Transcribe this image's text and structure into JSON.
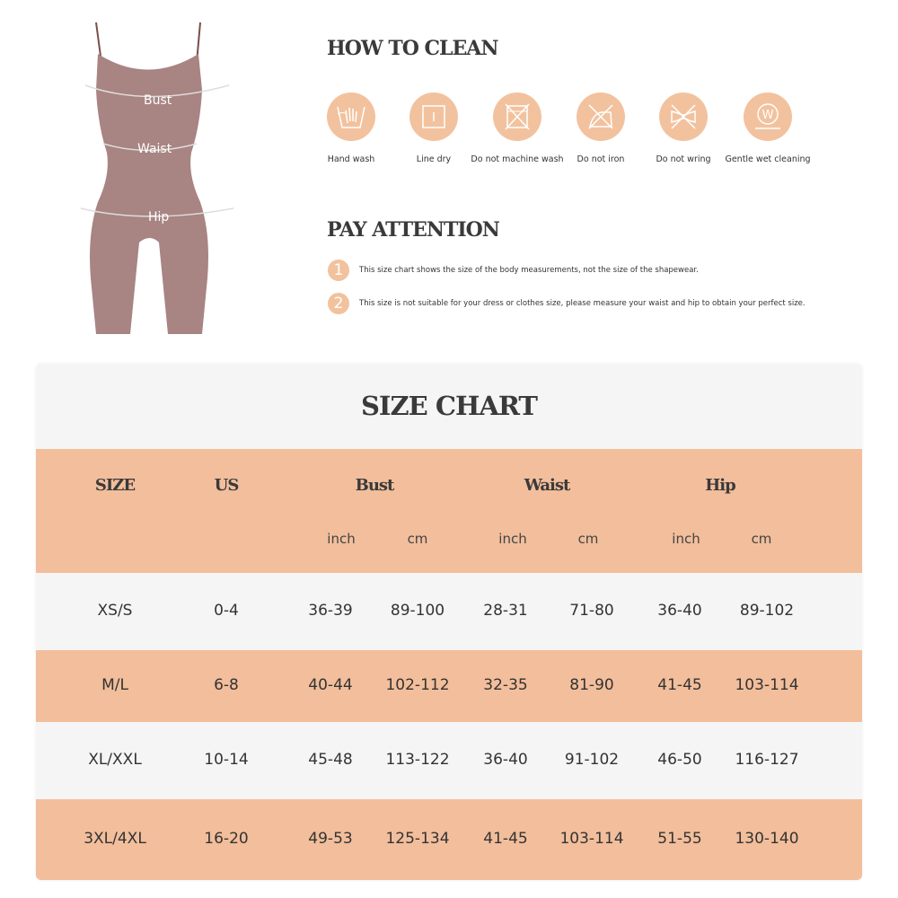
{
  "figure": {
    "labels": {
      "bust": "Bust",
      "waist": "Waist",
      "hip": "Hip"
    },
    "body_color": "#a88482"
  },
  "how_to_clean": {
    "title": "HOW TO CLEAN",
    "items": [
      {
        "label": "Hand wash",
        "icon": "hand-wash-icon"
      },
      {
        "label": "Line dry",
        "icon": "line-dry-icon"
      },
      {
        "label": "Do not machine wash",
        "icon": "no-machine-wash-icon"
      },
      {
        "label": "Do not iron",
        "icon": "no-iron-icon"
      },
      {
        "label": "Do not wring",
        "icon": "no-wring-icon"
      },
      {
        "label": "Gentle wet cleaning",
        "icon": "wet-cleaning-icon"
      }
    ]
  },
  "pay_attention": {
    "title": "PAY ATTENTION",
    "items": [
      {
        "num": "1",
        "text": "This size chart shows the size of the body measurements, not the size of the shapewear."
      },
      {
        "num": "2",
        "text": "This size is not suitable for your dress or clothes size, please measure your waist and hip to obtain your perfect size."
      }
    ]
  },
  "size_chart": {
    "title": "SIZE CHART",
    "headers": [
      "SIZE",
      "US",
      "Bust",
      "Waist",
      "Hip"
    ],
    "units": [
      "inch",
      "cm",
      "inch",
      "cm",
      "inch",
      "cm"
    ],
    "rows": [
      [
        "XS/S",
        "0-4",
        "36-39",
        "89-100",
        "28-31",
        "71-80",
        "36-40",
        "89-102"
      ],
      [
        "M/L",
        "6-8",
        "40-44",
        "102-112",
        "32-35",
        "81-90",
        "41-45",
        "103-114"
      ],
      [
        "XL/XXL",
        "10-14",
        "45-48",
        "113-122",
        "36-40",
        "91-102",
        "46-50",
        "116-127"
      ],
      [
        "3XL/4XL",
        "16-20",
        "49-53",
        "125-134",
        "41-45",
        "103-114",
        "51-55",
        "130-140"
      ]
    ],
    "colors": {
      "accent": "#f2be9b",
      "light": "#f5f5f5"
    }
  }
}
